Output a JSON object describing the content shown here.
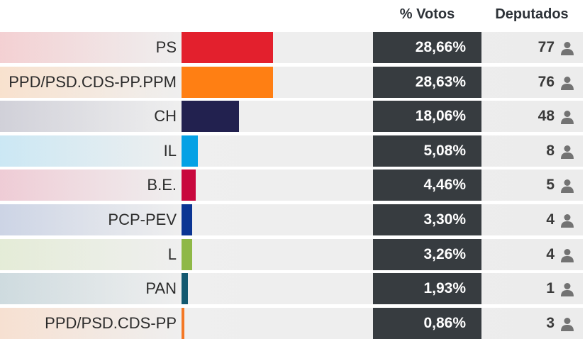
{
  "header": {
    "votes_label": "% Votos",
    "seats_label": "Deputados"
  },
  "icons": {
    "seat": "person-icon"
  },
  "colors": {
    "vote_cell_bg": "#373c40",
    "row_bg": "#ececec",
    "icon": "#737373"
  },
  "chart_data": {
    "type": "bar",
    "orientation": "horizontal",
    "xlim": [
      0,
      58.5
    ],
    "categories": [
      "PS",
      "PPD/PSD.CDS-PP.PPM",
      "CH",
      "IL",
      "B.E.",
      "PCP-PEV",
      "L",
      "PAN",
      "PPD/PSD.CDS-PP"
    ],
    "values": [
      28.66,
      28.63,
      18.06,
      5.08,
      4.46,
      3.3,
      3.26,
      1.93,
      0.86
    ],
    "vote_labels": [
      "28,66%",
      "28,63%",
      "18,06%",
      "5,08%",
      "4,46%",
      "3,30%",
      "3,26%",
      "1,93%",
      "0,86%"
    ],
    "seats": [
      77,
      76,
      48,
      8,
      5,
      4,
      4,
      1,
      3
    ],
    "colors": [
      "#e3202d",
      "#ff7f13",
      "#22214f",
      "#04a1e5",
      "#c8083d",
      "#0b3593",
      "#8fb847",
      "#135970",
      "#f47825"
    ]
  }
}
